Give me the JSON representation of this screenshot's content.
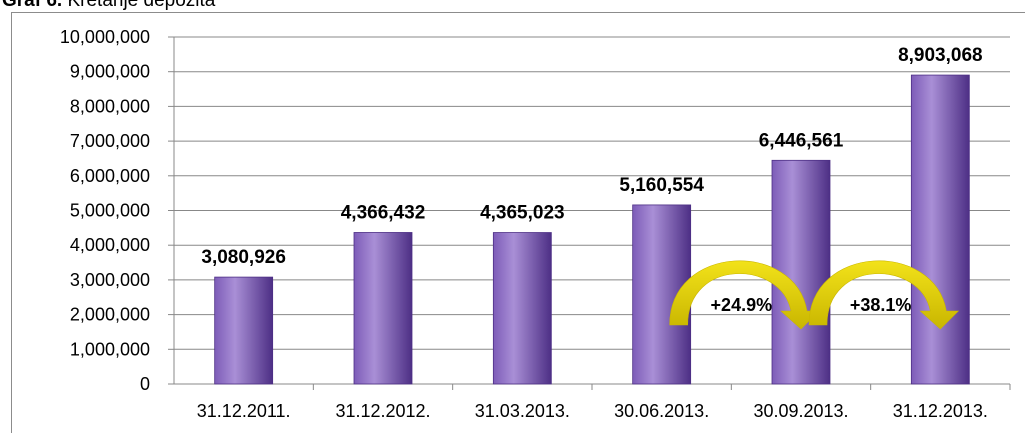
{
  "caption": {
    "prefix": "Graf 6.",
    "text": "Kretanje depozita"
  },
  "colors": {
    "bar_light": "#a98fd6",
    "bar_mid": "#7d5cb8",
    "bar_dark": "#4d2f85",
    "arrow": "#f2e21a",
    "arrow_dark": "#c9b600",
    "grid": "#888888"
  },
  "chart_data": {
    "type": "bar",
    "categories": [
      "31.12.2011.",
      "31.12.2012.",
      "31.03.2013.",
      "30.06.2013.",
      "30.09.2013.",
      "31.12.2013."
    ],
    "values": [
      3080926,
      4366432,
      4365023,
      5160554,
      6446561,
      8903068
    ],
    "data_labels": [
      "3,080,926",
      "4,366,432",
      "4,365,023",
      "5,160,554",
      "6,446,561",
      "8,903,068"
    ],
    "ylim": [
      0,
      10000000
    ],
    "yticks": [
      0,
      1000000,
      2000000,
      3000000,
      4000000,
      5000000,
      6000000,
      7000000,
      8000000,
      9000000,
      10000000
    ],
    "ytick_labels": [
      "0",
      "1,000,000",
      "2,000,000",
      "3,000,000",
      "4,000,000",
      "5,000,000",
      "6,000,000",
      "7,000,000",
      "8,000,000",
      "9,000,000",
      "10,000,000"
    ],
    "grid": true,
    "annotations": [
      {
        "text": "+24.9%",
        "from_category": 3,
        "to_category": 4
      },
      {
        "text": "+38.1%",
        "from_category": 4,
        "to_category": 5
      }
    ]
  }
}
